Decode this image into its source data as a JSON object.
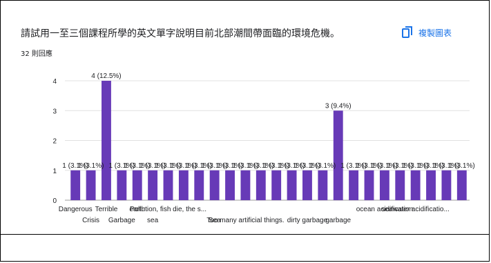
{
  "header": {
    "title": "請試用一至三個課程所學的英文單字說明目前北部潮間帶面臨的環境危機。",
    "response_count": "32 則回應",
    "copy_label": "複製圖表"
  },
  "colors": {
    "bar": "#673ab7",
    "grid": "#e0e0e0",
    "accent": "#1a73e8"
  },
  "chart_data": {
    "type": "bar",
    "title": "",
    "xlabel": "",
    "ylabel": "",
    "ylim": [
      0,
      4
    ],
    "yticks": [
      0,
      1,
      2,
      3,
      4
    ],
    "grid": true,
    "legend": "none",
    "categories": [
      "Dangerous",
      "Crisis",
      "Terrible",
      "Garbage",
      "earth",
      "sea",
      "Pollution, fish die, the s...",
      "",
      "",
      "Sea",
      "",
      "Too many artificial things.",
      "",
      "",
      "",
      "dirty garbage",
      "",
      "garbage",
      "",
      "",
      "ocean acidification",
      "",
      "seawater acidificatio...",
      "",
      "",
      ""
    ],
    "values": [
      1,
      1,
      4,
      1,
      1,
      1,
      1,
      1,
      1,
      1,
      1,
      1,
      1,
      1,
      1,
      1,
      1,
      3,
      1,
      1,
      1,
      1,
      1,
      1,
      1,
      1
    ],
    "data_labels": [
      "1 (3.1%)",
      "1 (3.1%)",
      "4 (12.5%)",
      "1 (3.1%)",
      "1 (3.1%)",
      "1 (3.1%)",
      "1 (3.1%)",
      "1 (3.1%)",
      "1 (3.1%)",
      "1 (3.1%)",
      "1 (3.1%)",
      "1 (3.1%)",
      "1 (3.1%)",
      "1 (3.1%)",
      "1 (3.1%)",
      "1 (3.1%)",
      "1 (3.1%)",
      "3 (9.4%)",
      "1 (3.1%)",
      "1 (3.1%)",
      "1 (3.1%)",
      "1 (3.1%)",
      "1 (3.1%)",
      "1 (3.1%)",
      "1 (3.1%)",
      "1 (3.1%)"
    ]
  }
}
